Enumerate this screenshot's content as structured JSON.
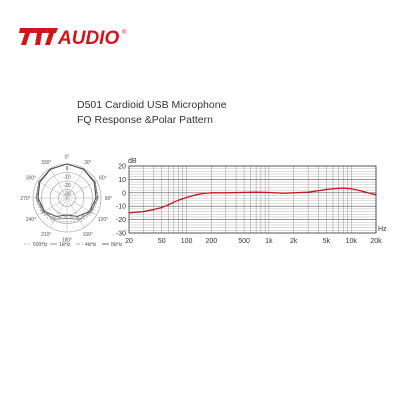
{
  "logo": {
    "text": "AUDIO",
    "brand_color": "#d4141b",
    "registered": "®"
  },
  "subtitle": {
    "line1": "D501 Cardioid USB Microphone",
    "line2": "FQ Response &Polar Pattern"
  },
  "chart_data": [
    {
      "type": "polar",
      "angle_labels": [
        "0°",
        "30°",
        "60°",
        "90°",
        "120°",
        "150°",
        "180°",
        "210°",
        "240°",
        "270°",
        "300°",
        "330°"
      ],
      "radial_labels": [
        "0",
        "-10",
        "-20",
        "-30"
      ],
      "radial_values": [
        0,
        -10,
        -20,
        -30
      ],
      "series": [
        {
          "name": "500Hz",
          "color": "#aaaaaa",
          "dash": "2,1.5",
          "points": [
            [
              0,
              0
            ],
            [
              30,
              -0.5
            ],
            [
              60,
              -1.5
            ],
            [
              90,
              -3
            ],
            [
              120,
              -5
            ],
            [
              150,
              -8
            ],
            [
              180,
              -12
            ],
            [
              210,
              -8
            ],
            [
              240,
              -5
            ],
            [
              270,
              -3
            ],
            [
              300,
              -1.5
            ],
            [
              330,
              -0.5
            ],
            [
              360,
              0
            ]
          ]
        },
        {
          "name": "1kHz",
          "color": "#777777",
          "dash": "",
          "points": [
            [
              0,
              0
            ],
            [
              30,
              -0.7
            ],
            [
              60,
              -2
            ],
            [
              90,
              -4
            ],
            [
              120,
              -7
            ],
            [
              150,
              -11
            ],
            [
              180,
              -16
            ],
            [
              210,
              -11
            ],
            [
              240,
              -7
            ],
            [
              270,
              -4
            ],
            [
              300,
              -2
            ],
            [
              330,
              -0.7
            ],
            [
              360,
              0
            ]
          ]
        },
        {
          "name": "4kHz",
          "color": "#999999",
          "dash": "4,2",
          "points": [
            [
              0,
              0
            ],
            [
              30,
              -1
            ],
            [
              60,
              -2.5
            ],
            [
              90,
              -5
            ],
            [
              120,
              -8
            ],
            [
              150,
              -13
            ],
            [
              180,
              -18
            ],
            [
              210,
              -13
            ],
            [
              240,
              -8
            ],
            [
              270,
              -5
            ],
            [
              300,
              -2.5
            ],
            [
              330,
              -1
            ],
            [
              360,
              0
            ]
          ]
        },
        {
          "name": "8kHz",
          "color": "#444444",
          "dash": "",
          "points": [
            [
              0,
              0
            ],
            [
              30,
              -1
            ],
            [
              60,
              -3
            ],
            [
              90,
              -6
            ],
            [
              120,
              -9
            ],
            [
              150,
              -15
            ],
            [
              180,
              -20
            ],
            [
              210,
              -15
            ],
            [
              240,
              -9
            ],
            [
              270,
              -6
            ],
            [
              300,
              -3
            ],
            [
              330,
              -1
            ],
            [
              360,
              0
            ]
          ]
        }
      ]
    },
    {
      "type": "line",
      "ylabel": "dB",
      "xlabel": "Hz",
      "x_scale": "log",
      "xlim": [
        20,
        20000
      ],
      "ylim": [
        -30,
        20
      ],
      "y_ticks": [
        20,
        10,
        0,
        -10,
        -20,
        -30
      ],
      "y_tick_labels": [
        "20",
        "10",
        "0",
        "-10",
        "-20",
        "-30"
      ],
      "x_ticks": [
        20,
        50,
        100,
        200,
        500,
        1000,
        2000,
        5000,
        10000,
        20000
      ],
      "x_tick_labels": [
        "20",
        "50",
        "100",
        "200",
        "500",
        "1k",
        "2k",
        "5k",
        "10k",
        "20k"
      ],
      "grid": true,
      "series": [
        {
          "color": "#c8141e",
          "x": [
            20,
            30,
            40,
            50,
            60,
            70,
            80,
            100,
            130,
            160,
            200,
            300,
            500,
            700,
            1000,
            1500,
            2000,
            3000,
            4000,
            5000,
            6000,
            7000,
            8000,
            10000,
            12000,
            15000,
            20000
          ],
          "y": [
            -15,
            -14,
            -12.5,
            -11,
            -9,
            -7,
            -5.5,
            -3.5,
            -1.5,
            -0.5,
            0,
            0,
            0.3,
            0.5,
            0.2,
            -0.3,
            0,
            0.5,
            1.5,
            2.5,
            3,
            3.3,
            3.5,
            3,
            2,
            0.5,
            -1.5
          ]
        }
      ]
    }
  ]
}
